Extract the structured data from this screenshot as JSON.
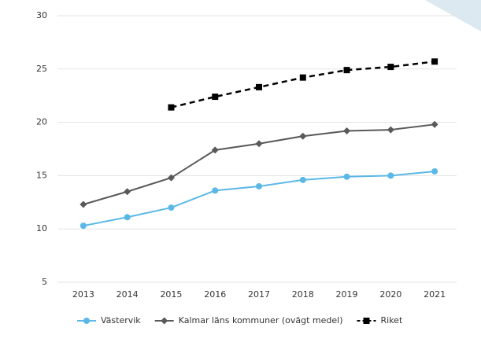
{
  "chart_data": {
    "type": "line",
    "categories": [
      "2013",
      "2014",
      "2015",
      "2016",
      "2017",
      "2018",
      "2019",
      "2020",
      "2021"
    ],
    "series": [
      {
        "name": "Västervik",
        "color": "#5bb8e6",
        "marker": "circle",
        "dashed": false,
        "values": [
          10.3,
          11.1,
          12.0,
          13.6,
          14.0,
          14.6,
          14.9,
          15.0,
          15.4
        ]
      },
      {
        "name": "Kalmar läns kommuner (ovägt medel)",
        "color": "#595959",
        "marker": "diamond",
        "dashed": false,
        "values": [
          12.3,
          13.5,
          14.8,
          17.4,
          18.0,
          18.7,
          19.2,
          19.3,
          19.8
        ]
      },
      {
        "name": "Riket",
        "color": "#000000",
        "marker": "square",
        "dashed": true,
        "values": [
          null,
          null,
          21.4,
          22.4,
          23.3,
          24.2,
          24.9,
          25.2,
          25.7
        ]
      }
    ],
    "ylim": [
      5,
      30
    ],
    "yticks": [
      5,
      10,
      15,
      20,
      25,
      30
    ],
    "grid": true,
    "legend": "bottom"
  }
}
